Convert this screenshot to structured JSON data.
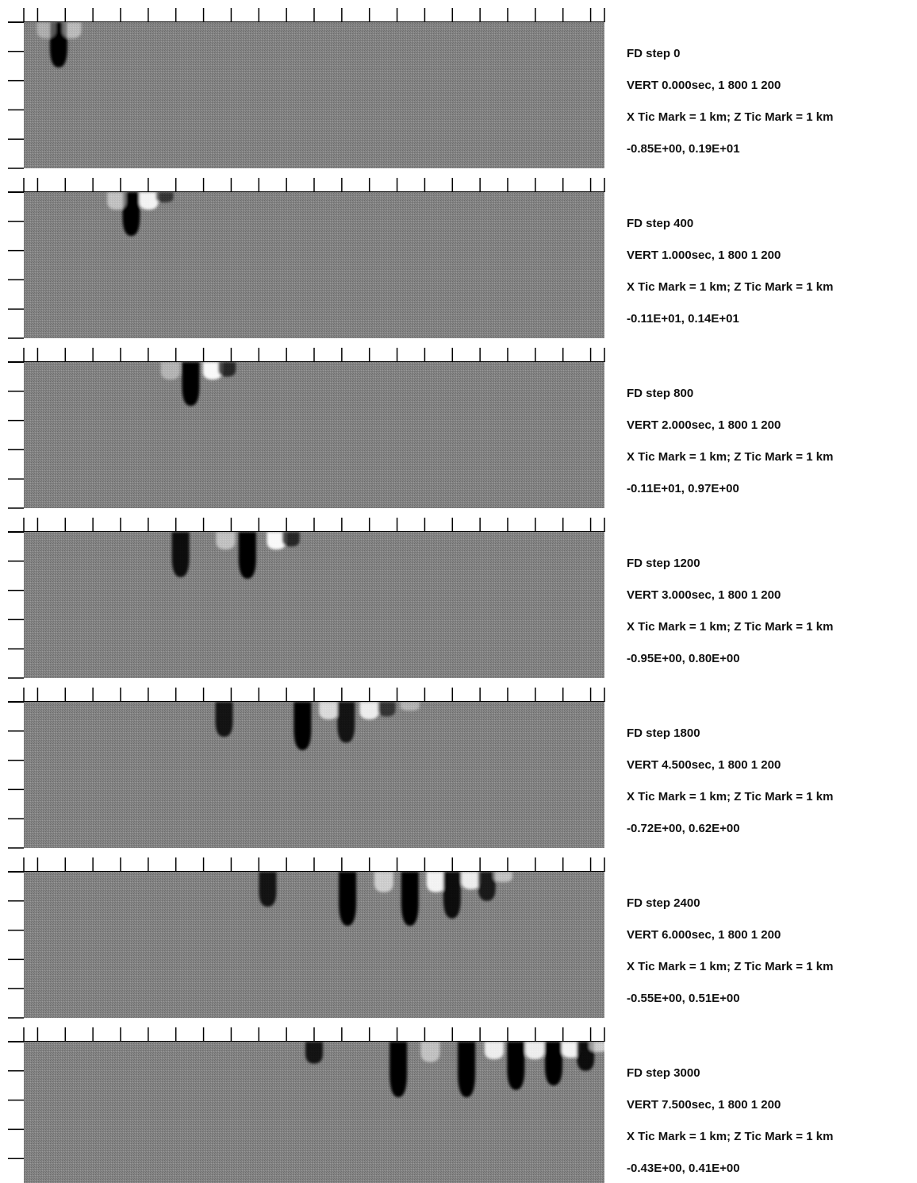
{
  "panels": [
    {
      "step_text": "FD step    0",
      "vert_text": "VERT  0.000sec,       1 800   1 200",
      "tic_text": "X Tic Mark =    1 km;  Z Tic Mark =    1 km",
      "range_text": "-0.85E+00,  0.19E+01",
      "pulses": [
        {
          "x": 1.2,
          "z": 1.55,
          "sign": -1,
          "a": 1.0
        },
        {
          "x": 0.78,
          "z": 0.55,
          "sign": 1,
          "a": 0.35
        },
        {
          "x": 1.65,
          "z": 0.55,
          "sign": 1,
          "a": 0.45
        }
      ]
    },
    {
      "step_text": "FD step   400",
      "vert_text": "VERT  1.000sec,       1 800   1 200",
      "tic_text": "X Tic Mark =    1 km;  Z Tic Mark =    1 km",
      "range_text": "-0.11E+01,  0.14E+01",
      "pulses": [
        {
          "x": 3.7,
          "z": 1.5,
          "sign": -1,
          "a": 1.0
        },
        {
          "x": 3.2,
          "z": 0.6,
          "sign": 1,
          "a": 0.5
        },
        {
          "x": 4.3,
          "z": 0.6,
          "sign": 1,
          "a": 0.9
        },
        {
          "x": 4.85,
          "z": 0.35,
          "sign": -1,
          "a": 0.6
        }
      ]
    },
    {
      "step_text": "FD step   800",
      "vert_text": "VERT  2.000sec,       1 800   1 200",
      "tic_text": "X Tic Mark =    1 km;  Z Tic Mark =    1 km",
      "range_text": "-0.11E+01,  0.97E+00",
      "pulses": [
        {
          "x": 5.75,
          "z": 1.5,
          "sign": -1,
          "a": 1.0
        },
        {
          "x": 5.05,
          "z": 0.6,
          "sign": 1,
          "a": 0.4
        },
        {
          "x": 6.5,
          "z": 0.6,
          "sign": 1,
          "a": 0.95
        },
        {
          "x": 7.0,
          "z": 0.5,
          "sign": -1,
          "a": 0.7
        }
      ]
    },
    {
      "step_text": "FD step  1200",
      "vert_text": "VERT  3.000sec,       1 800   1 200",
      "tic_text": "X Tic Mark =    1 km;  Z Tic Mark =    1 km",
      "range_text": "-0.95E+00,  0.80E+00",
      "pulses": [
        {
          "x": 5.4,
          "z": 1.55,
          "sign": -1,
          "a": 0.9
        },
        {
          "x": 7.7,
          "z": 1.6,
          "sign": -1,
          "a": 1.0
        },
        {
          "x": 6.95,
          "z": 0.6,
          "sign": 1,
          "a": 0.5
        },
        {
          "x": 8.7,
          "z": 0.6,
          "sign": 1,
          "a": 0.95
        },
        {
          "x": 9.2,
          "z": 0.5,
          "sign": -1,
          "a": 0.7
        }
      ]
    },
    {
      "step_text": "FD step  1800",
      "vert_text": "VERT  4.500sec,       1 800   1 200",
      "tic_text": "X Tic Mark =    1 km;  Z Tic Mark =    1 km",
      "range_text": "-0.72E+00,  0.62E+00",
      "pulses": [
        {
          "x": 6.9,
          "z": 1.2,
          "sign": -1,
          "a": 0.85
        },
        {
          "x": 9.6,
          "z": 1.65,
          "sign": -1,
          "a": 1.0
        },
        {
          "x": 10.5,
          "z": 0.6,
          "sign": 1,
          "a": 0.7
        },
        {
          "x": 11.1,
          "z": 1.4,
          "sign": -1,
          "a": 0.85
        },
        {
          "x": 11.9,
          "z": 0.6,
          "sign": 1,
          "a": 0.85
        },
        {
          "x": 12.5,
          "z": 0.5,
          "sign": -1,
          "a": 0.6
        },
        {
          "x": 13.3,
          "z": 0.3,
          "sign": 1,
          "a": 0.4
        }
      ]
    },
    {
      "step_text": "FD step  2400",
      "vert_text": "VERT  6.000sec,       1 800   1 200",
      "tic_text": "X Tic Mark =    1 km;  Z Tic Mark =    1 km",
      "range_text": "-0.55E+00,  0.51E+00",
      "pulses": [
        {
          "x": 8.4,
          "z": 1.2,
          "sign": -1,
          "a": 0.85
        },
        {
          "x": 11.15,
          "z": 1.85,
          "sign": -1,
          "a": 1.0
        },
        {
          "x": 12.4,
          "z": 0.7,
          "sign": 1,
          "a": 0.6
        },
        {
          "x": 13.3,
          "z": 1.85,
          "sign": -1,
          "a": 1.0
        },
        {
          "x": 14.2,
          "z": 0.7,
          "sign": 1,
          "a": 0.9
        },
        {
          "x": 14.75,
          "z": 1.6,
          "sign": -1,
          "a": 0.9
        },
        {
          "x": 15.4,
          "z": 0.6,
          "sign": 1,
          "a": 0.85
        },
        {
          "x": 15.95,
          "z": 1.0,
          "sign": -1,
          "a": 0.8
        },
        {
          "x": 16.5,
          "z": 0.35,
          "sign": 1,
          "a": 0.5
        }
      ]
    },
    {
      "step_text": "FD step  3000",
      "vert_text": "VERT  7.500sec,       1 800   1 200",
      "tic_text": "X Tic Mark =    1 km;  Z Tic Mark =    1 km",
      "range_text": "-0.43E+00,  0.41E+00",
      "pulses": [
        {
          "x": 10.0,
          "z": 0.75,
          "sign": -1,
          "a": 0.85
        },
        {
          "x": 12.9,
          "z": 1.9,
          "sign": -1,
          "a": 1.0
        },
        {
          "x": 14.0,
          "z": 0.7,
          "sign": 1,
          "a": 0.5
        },
        {
          "x": 15.25,
          "z": 1.9,
          "sign": -1,
          "a": 1.0
        },
        {
          "x": 16.2,
          "z": 0.6,
          "sign": 1,
          "a": 0.85
        },
        {
          "x": 16.95,
          "z": 1.65,
          "sign": -1,
          "a": 1.0
        },
        {
          "x": 17.6,
          "z": 0.6,
          "sign": 1,
          "a": 0.85
        },
        {
          "x": 18.25,
          "z": 1.5,
          "sign": -1,
          "a": 1.0
        },
        {
          "x": 18.85,
          "z": 0.55,
          "sign": 1,
          "a": 0.9
        },
        {
          "x": 19.35,
          "z": 1.0,
          "sign": -1,
          "a": 0.9
        },
        {
          "x": 19.8,
          "z": 0.35,
          "sign": 1,
          "a": 0.6
        }
      ]
    }
  ],
  "model": {
    "x_tics": 21,
    "z_tics": 4,
    "x_extent_km": 20,
    "z_extent_km": 5
  },
  "colors": {
    "background": "#808080",
    "negative": "#000000",
    "positive": "#ffffff",
    "axis": "#000000"
  }
}
